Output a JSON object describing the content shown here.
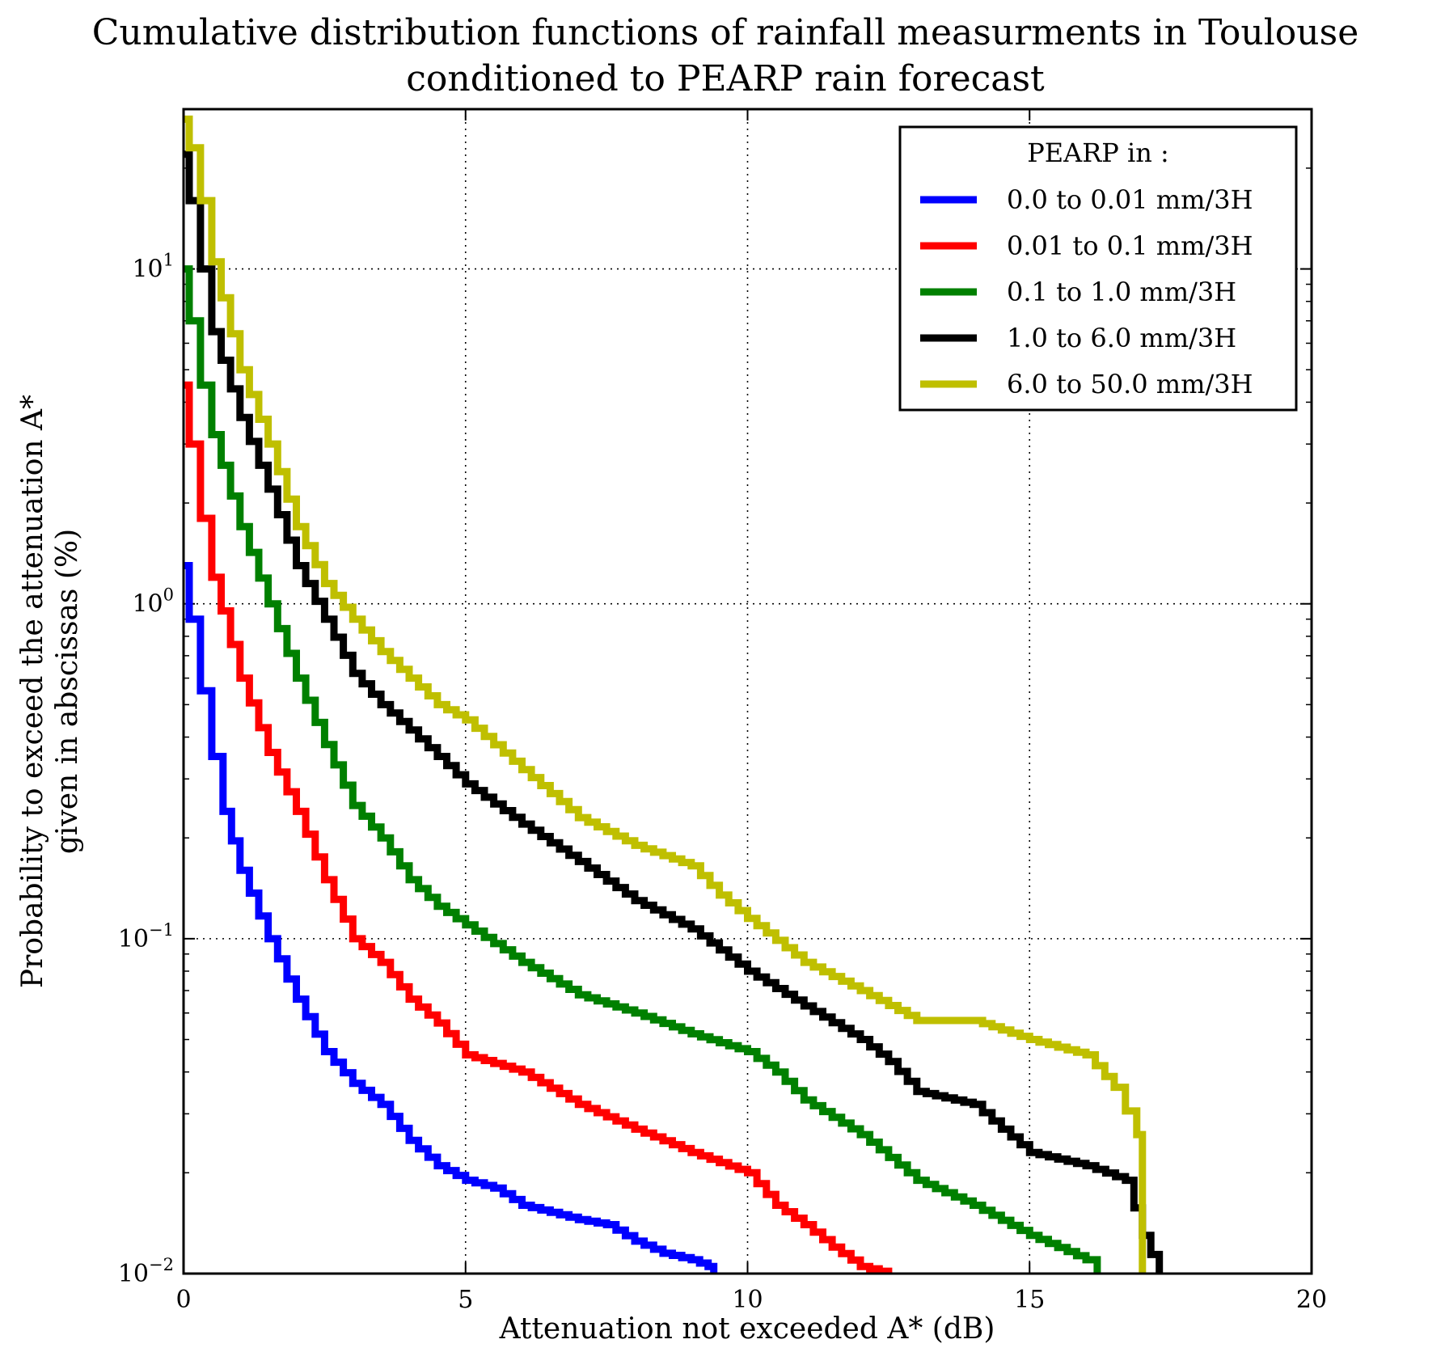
{
  "chart_data": {
    "type": "line",
    "title": "Cumulative distribution functions of rainfall measurments in Toulouse",
    "subtitle": "conditioned to PEARP rain forecast",
    "xlabel": "Attenuation not exceeded A* (dB)",
    "ylabel_line1": "Probability to exceed the attenuation A*",
    "ylabel_line2": "given in abscissas (%)",
    "xlim": [
      0,
      20
    ],
    "ylim": [
      0.01,
      30
    ],
    "yscale": "log",
    "grid": true,
    "legend_position": "top-right",
    "legend_title": "PEARP in :",
    "x_ticks": [
      "0",
      "5",
      "10",
      "15",
      "20"
    ],
    "y_ticks": [
      {
        "base": "10",
        "exp": "−2"
      },
      {
        "base": "10",
        "exp": "−1"
      },
      {
        "base": "10",
        "exp": "0"
      },
      {
        "base": "10",
        "exp": "1"
      }
    ],
    "series": [
      {
        "name": "0.0 to 0.01 mm/3H",
        "color": "#0000ff",
        "points": [
          [
            0,
            1.3
          ],
          [
            0.1,
            0.9
          ],
          [
            0.3,
            0.55
          ],
          [
            0.5,
            0.35
          ],
          [
            0.7,
            0.24
          ],
          [
            1.0,
            0.16
          ],
          [
            1.5,
            0.1
          ],
          [
            2.0,
            0.066
          ],
          [
            2.5,
            0.046
          ],
          [
            3.0,
            0.037
          ],
          [
            3.5,
            0.032
          ],
          [
            4.0,
            0.025
          ],
          [
            4.5,
            0.021
          ],
          [
            5.0,
            0.019
          ],
          [
            5.5,
            0.018
          ],
          [
            6.0,
            0.016
          ],
          [
            7.0,
            0.0145
          ],
          [
            7.5,
            0.014
          ],
          [
            8.0,
            0.0125
          ],
          [
            8.5,
            0.0115
          ],
          [
            9.0,
            0.011
          ],
          [
            9.3,
            0.0105
          ],
          [
            9.4,
            0.01
          ]
        ]
      },
      {
        "name": "0.01 to 0.1 mm/3H",
        "color": "#ff0000",
        "points": [
          [
            0,
            4.5
          ],
          [
            0.1,
            3.0
          ],
          [
            0.3,
            1.8
          ],
          [
            0.5,
            1.2
          ],
          [
            1.0,
            0.6
          ],
          [
            1.5,
            0.36
          ],
          [
            2.0,
            0.24
          ],
          [
            2.5,
            0.15
          ],
          [
            3.0,
            0.1
          ],
          [
            3.5,
            0.085
          ],
          [
            4.0,
            0.066
          ],
          [
            4.5,
            0.056
          ],
          [
            5.0,
            0.045
          ],
          [
            6.0,
            0.04
          ],
          [
            7.0,
            0.032
          ],
          [
            8.0,
            0.027
          ],
          [
            9.0,
            0.023
          ],
          [
            10.0,
            0.02
          ],
          [
            10.5,
            0.016
          ],
          [
            11.0,
            0.014
          ],
          [
            11.5,
            0.012
          ],
          [
            12.0,
            0.0105
          ],
          [
            12.5,
            0.01
          ]
        ]
      },
      {
        "name": "0.1 to 1.0 mm/3H",
        "color": "#008000",
        "points": [
          [
            0,
            10
          ],
          [
            0.1,
            7
          ],
          [
            0.3,
            4.5
          ],
          [
            0.5,
            3.2
          ],
          [
            1.0,
            1.7
          ],
          [
            1.5,
            1.0
          ],
          [
            2.0,
            0.6
          ],
          [
            2.5,
            0.38
          ],
          [
            3.0,
            0.25
          ],
          [
            3.5,
            0.2
          ],
          [
            4.0,
            0.15
          ],
          [
            4.5,
            0.125
          ],
          [
            5.0,
            0.11
          ],
          [
            6.0,
            0.085
          ],
          [
            7.0,
            0.068
          ],
          [
            8.0,
            0.06
          ],
          [
            9.0,
            0.052
          ],
          [
            10.0,
            0.046
          ],
          [
            10.5,
            0.04
          ],
          [
            11.0,
            0.033
          ],
          [
            12.0,
            0.026
          ],
          [
            13.0,
            0.019
          ],
          [
            14.0,
            0.016
          ],
          [
            15.0,
            0.013
          ],
          [
            16.0,
            0.011
          ],
          [
            16.2,
            0.01
          ]
        ]
      },
      {
        "name": "1.0 to 6.0 mm/3H",
        "color": "#000000",
        "points": [
          [
            0,
            22
          ],
          [
            0.1,
            16
          ],
          [
            0.3,
            10
          ],
          [
            0.5,
            6.5
          ],
          [
            1.0,
            3.6
          ],
          [
            1.5,
            2.2
          ],
          [
            2.0,
            1.3
          ],
          [
            2.5,
            0.9
          ],
          [
            3.0,
            0.62
          ],
          [
            3.5,
            0.5
          ],
          [
            4.0,
            0.42
          ],
          [
            4.5,
            0.35
          ],
          [
            5.0,
            0.29
          ],
          [
            6.0,
            0.22
          ],
          [
            7.0,
            0.17
          ],
          [
            8.0,
            0.13
          ],
          [
            9.0,
            0.107
          ],
          [
            10.0,
            0.08
          ],
          [
            11.0,
            0.063
          ],
          [
            12.0,
            0.05
          ],
          [
            12.5,
            0.043
          ],
          [
            13.0,
            0.035
          ],
          [
            14.0,
            0.032
          ],
          [
            14.5,
            0.027
          ],
          [
            15.0,
            0.023
          ],
          [
            16.0,
            0.021
          ],
          [
            16.7,
            0.019
          ],
          [
            17.0,
            0.013
          ],
          [
            17.3,
            0.01
          ]
        ]
      },
      {
        "name": "6.0 to 50.0 mm/3H",
        "color": "#bfbf00",
        "points": [
          [
            0,
            28
          ],
          [
            0.1,
            23
          ],
          [
            0.3,
            16
          ],
          [
            0.5,
            10.5
          ],
          [
            1.0,
            5.0
          ],
          [
            1.5,
            3.0
          ],
          [
            2.0,
            1.7
          ],
          [
            2.5,
            1.15
          ],
          [
            3.0,
            0.9
          ],
          [
            3.5,
            0.72
          ],
          [
            4.0,
            0.6
          ],
          [
            4.5,
            0.5
          ],
          [
            5.0,
            0.45
          ],
          [
            6.0,
            0.32
          ],
          [
            7.0,
            0.23
          ],
          [
            8.0,
            0.19
          ],
          [
            9.0,
            0.165
          ],
          [
            9.5,
            0.135
          ],
          [
            10.0,
            0.115
          ],
          [
            11.0,
            0.085
          ],
          [
            12.0,
            0.07
          ],
          [
            13.0,
            0.057
          ],
          [
            14.0,
            0.057
          ],
          [
            15.0,
            0.05
          ],
          [
            16.0,
            0.045
          ],
          [
            16.5,
            0.036
          ],
          [
            16.9,
            0.026
          ],
          [
            17.0,
            0.01
          ]
        ]
      }
    ]
  }
}
